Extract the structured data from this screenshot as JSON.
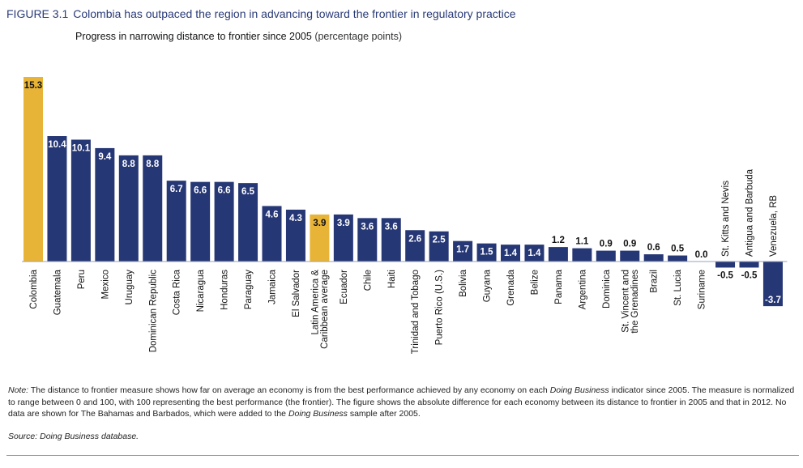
{
  "figure": {
    "label": "FIGURE 3.1",
    "title": "Colombia has outpaced the region in advancing toward the frontier in regulatory practice",
    "subtitle": "Progress in narrowing distance to frontier since 2005",
    "subtitle_unit": "(percentage points)"
  },
  "colors": {
    "bar": "#263775",
    "highlight": "#e8b437",
    "text_dark": "#111111",
    "text_light": "#ffffff",
    "title": "#2a3b78"
  },
  "chart_data": {
    "type": "bar",
    "title": "Progress in narrowing distance to frontier since 2005",
    "xlabel": "",
    "ylabel": "(percentage points)",
    "ylim": [
      -3.7,
      15.3
    ],
    "grid": false,
    "categories": [
      [
        "Colombia"
      ],
      [
        "Guatemala"
      ],
      [
        "Peru"
      ],
      [
        "Mexico"
      ],
      [
        "Uruguay"
      ],
      [
        "Dominican Republic"
      ],
      [
        "Costa Rica"
      ],
      [
        "Nicaragua"
      ],
      [
        "Honduras"
      ],
      [
        "Paraguay"
      ],
      [
        "Jamaica"
      ],
      [
        "El Salvador"
      ],
      [
        "Latin America &",
        "Caribbean average"
      ],
      [
        "Ecuador"
      ],
      [
        "Chile"
      ],
      [
        "Haiti"
      ],
      [
        "Trinidad and Tobago"
      ],
      [
        "Puerto Rico (U.S.)"
      ],
      [
        "Bolivia"
      ],
      [
        "Guyana"
      ],
      [
        "Grenada"
      ],
      [
        "Belize"
      ],
      [
        "Panama"
      ],
      [
        "Argentina"
      ],
      [
        "Dominica"
      ],
      [
        "St. Vincent and",
        "the Grenadines"
      ],
      [
        "Brazil"
      ],
      [
        "St. Lucia"
      ],
      [
        "Suriname"
      ],
      [
        "St. Kitts and Nevis"
      ],
      [
        "Antigua and Barbuda"
      ],
      [
        "Venezuela, RB"
      ]
    ],
    "values": [
      15.3,
      10.4,
      10.1,
      9.4,
      8.8,
      8.8,
      6.7,
      6.6,
      6.6,
      6.5,
      4.6,
      4.3,
      3.9,
      3.9,
      3.6,
      3.6,
      2.6,
      2.5,
      1.7,
      1.5,
      1.4,
      1.4,
      1.2,
      1.1,
      0.9,
      0.9,
      0.6,
      0.5,
      0.0,
      -0.5,
      -0.5,
      -3.7
    ],
    "value_labels": [
      "15.3",
      "10.4",
      "10.1",
      "9.4",
      "8.8",
      "8.8",
      "6.7",
      "6.6",
      "6.6",
      "6.5",
      "4.6",
      "4.3",
      "3.9",
      "3.9",
      "3.6",
      "3.6",
      "2.6",
      "2.5",
      "1.7",
      "1.5",
      "1.4",
      "1.4",
      "1.2",
      "1.1",
      "0.9",
      "0.9",
      "0.6",
      "0.5",
      "0.0",
      "-0.5",
      "-0.5",
      "-3.7"
    ],
    "highlighted": [
      "Colombia",
      "Latin America & Caribbean average"
    ]
  },
  "note": {
    "label": "Note:",
    "parts": [
      " The distance to frontier measure shows how far on average an economy is from the best performance achieved by any economy on each ",
      "Doing Business",
      " indicator since 2005. The measure is normalized to range between 0 and 100, with 100 representing the best performance (the frontier). The figure shows the absolute difference for each economy between its distance to frontier in 2005 and that in 2012. No data are shown for The Bahamas and Barbados, which were added to the ",
      "Doing Business",
      " sample after 2005."
    ]
  },
  "source": {
    "label": "Source:",
    "text": " Doing Business database."
  }
}
